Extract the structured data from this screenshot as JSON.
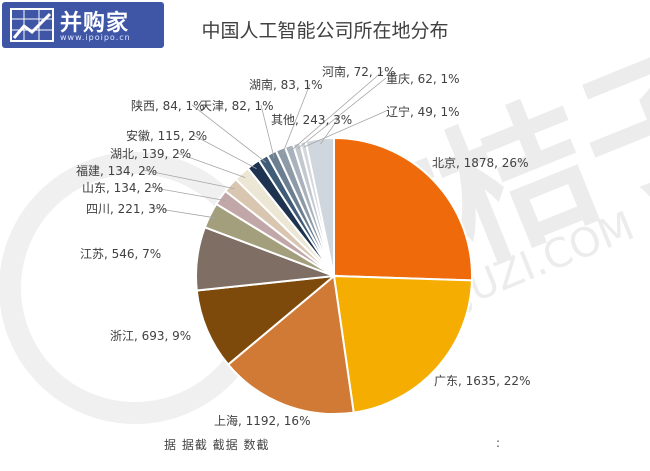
{
  "logo": {
    "text": "并购家",
    "url": "www.ipoipo.cn",
    "color": "#3f55a6"
  },
  "watermark": {
    "brand": "IT桔子",
    "url": "ITJUZI.COM"
  },
  "footer": {
    "text": "据 据截 截据 数截",
    "colon": ":"
  },
  "chart_data": {
    "type": "pie",
    "title": "中国人工智能公司所在地分布",
    "label_format": "{name}, {value}, {percent}",
    "slices": [
      {
        "name": "北京",
        "value": 1878,
        "percent": "26%",
        "color": "#ee6a0a"
      },
      {
        "name": "广东",
        "value": 1635,
        "percent": "22%",
        "color": "#f4ad00"
      },
      {
        "name": "上海",
        "value": 1192,
        "percent": "16%",
        "color": "#d07a35"
      },
      {
        "name": "浙江",
        "value": 693,
        "percent": "9%",
        "color": "#7e4a0b"
      },
      {
        "name": "江苏",
        "value": 546,
        "percent": "7%",
        "color": "#7e6e63"
      },
      {
        "name": "四川",
        "value": 221,
        "percent": "3%",
        "color": "#a39e7c"
      },
      {
        "name": "山东",
        "value": 134,
        "percent": "2%",
        "color": "#c2a7a9"
      },
      {
        "name": "福建",
        "value": 134,
        "percent": "2%",
        "color": "#d9c6b0"
      },
      {
        "name": "湖北",
        "value": 139,
        "percent": "2%",
        "color": "#ece6d4"
      },
      {
        "name": "安徽",
        "value": 115,
        "percent": "2%",
        "color": "#1e3350"
      },
      {
        "name": "陕西",
        "value": 84,
        "percent": "1%",
        "color": "#3f5c78"
      },
      {
        "name": "天津",
        "value": 82,
        "percent": "1%",
        "color": "#6c7f91"
      },
      {
        "name": "湖南",
        "value": 83,
        "percent": "1%",
        "color": "#8d9aa7"
      },
      {
        "name": "河南",
        "value": 72,
        "percent": "1%",
        "color": "#aab3bd"
      },
      {
        "name": "重庆",
        "value": 62,
        "percent": "1%",
        "color": "#c2c8ce"
      },
      {
        "name": "辽宁",
        "value": 49,
        "percent": "1%",
        "color": "#d4d8dc"
      },
      {
        "name": "其他",
        "value": 243,
        "percent": "3%",
        "color": "#cfd6de"
      }
    ]
  }
}
